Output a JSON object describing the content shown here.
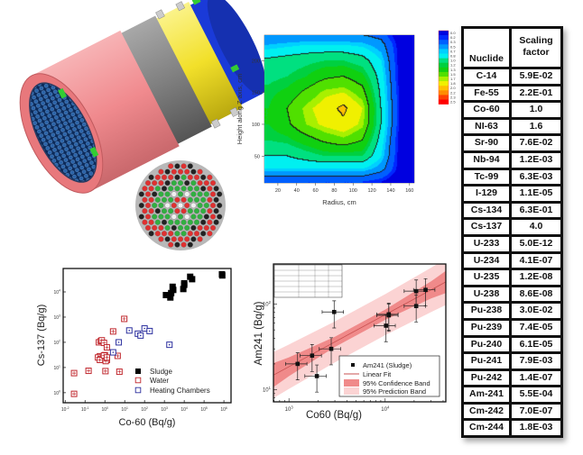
{
  "table": {
    "headers": [
      "Nuclide",
      "Scaling factor"
    ],
    "rows": [
      [
        "C-14",
        "5.9E-02"
      ],
      [
        "Fe-55",
        "2.2E-01"
      ],
      [
        "Co-60",
        "1.0"
      ],
      [
        "NI-63",
        "1.6"
      ],
      [
        "Sr-90",
        "7.6E-02"
      ],
      [
        "Nb-94",
        "1.2E-03"
      ],
      [
        "Tc-99",
        "6.3E-03"
      ],
      [
        "I-129",
        "1.1E-05"
      ],
      [
        "Cs-134",
        "6.3E-01"
      ],
      [
        "Cs-137",
        "4.0"
      ],
      [
        "U-233",
        "5.0E-12"
      ],
      [
        "U-234",
        "4.1E-07"
      ],
      [
        "U-235",
        "1.2E-08"
      ],
      [
        "U-238",
        "8.6E-08"
      ],
      [
        "Pu-238",
        "3.0E-02"
      ],
      [
        "Pu-239",
        "7.4E-05"
      ],
      [
        "Pu-240",
        "6.1E-05"
      ],
      [
        "Pu-241",
        "7.9E-03"
      ],
      [
        "Pu-242",
        "1.4E-07"
      ],
      [
        "Am-241",
        "5.5E-04"
      ],
      [
        "Cm-242",
        "7.0E-07"
      ],
      [
        "Cm-244",
        "1.8E-03"
      ]
    ]
  },
  "colors": {
    "sludge": "#000000",
    "water": "#c0272d",
    "heating": "#2b2f9e",
    "fit": "#c85050",
    "confidence": "#f08a8a",
    "prediction": "#fbd3d3",
    "cylinder_pink": "#f08a8e",
    "cylinder_gray": "#808080",
    "cylinder_yellow": "#f2e02a",
    "cylinder_blue": "#1a3ad8"
  },
  "chart_data": [
    {
      "type": "heatmap",
      "xlabel": "Radius, cm",
      "ylabel": "Height along Z axis, cm",
      "xlim": [
        5.7,
        165
      ],
      "ylim": [
        8,
        240
      ],
      "xticks": [
        20,
        40,
        60,
        80,
        100,
        120,
        140,
        160
      ],
      "yticks": [
        50,
        100,
        150,
        200
      ],
      "r": [
        5,
        10,
        30,
        50,
        70,
        90,
        110,
        130,
        150,
        165
      ],
      "z": [
        10,
        30,
        50,
        75,
        100,
        125,
        150,
        175,
        200,
        225,
        240
      ],
      "values": [
        [
          0.3,
          0.3,
          0.3,
          0.3,
          0.3,
          0.3,
          0.3,
          0.2,
          0.0,
          0.0
        ],
        [
          0.8,
          0.8,
          0.8,
          0.8,
          0.8,
          0.8,
          0.8,
          0.6,
          0.1,
          0.0
        ],
        [
          1.0,
          1.0,
          1.0,
          1.1,
          1.2,
          1.2,
          1.2,
          0.8,
          0.1,
          0.0
        ],
        [
          1.2,
          1.2,
          1.25,
          1.4,
          1.55,
          1.65,
          1.5,
          0.9,
          0.1,
          0.0
        ],
        [
          1.3,
          1.3,
          1.45,
          1.7,
          1.85,
          1.95,
          1.75,
          1.0,
          0.15,
          0.0
        ],
        [
          1.3,
          1.3,
          1.5,
          1.75,
          1.9,
          2.05,
          1.8,
          1.0,
          0.15,
          0.0
        ],
        [
          1.25,
          1.25,
          1.35,
          1.55,
          1.75,
          1.8,
          1.6,
          0.95,
          0.15,
          0.0
        ],
        [
          1.15,
          1.15,
          1.2,
          1.3,
          1.45,
          1.5,
          1.35,
          0.9,
          0.1,
          0.0
        ],
        [
          1.05,
          1.05,
          1.1,
          1.15,
          1.2,
          1.2,
          1.1,
          0.8,
          0.1,
          0.0
        ],
        [
          0.7,
          0.7,
          0.75,
          0.8,
          0.8,
          0.8,
          0.75,
          0.6,
          0.1,
          0.0
        ],
        [
          0.5,
          0.5,
          0.5,
          0.5,
          0.5,
          0.5,
          0.5,
          0.4,
          0.05,
          0.0
        ]
      ],
      "colorbar_labels": [
        "0.0",
        "0.2",
        "0.3",
        "0.5",
        "0.7",
        "0.8",
        "1.0",
        "1.2",
        "1.3",
        "1.5",
        "1.7",
        "1.8",
        "2.0",
        "2.2",
        "2.3",
        "2.5"
      ],
      "colorbar_colors": [
        "#0000e0",
        "#0028ff",
        "#0060ff",
        "#0098ff",
        "#00d0ff",
        "#00f0f0",
        "#00e080",
        "#00d040",
        "#10d010",
        "#50e000",
        "#a8f000",
        "#f0f000",
        "#ffc000",
        "#ff8c00",
        "#ff4000",
        "#ff0000"
      ],
      "contour_levels": [
        0.5,
        1.0,
        1.5,
        2.0
      ],
      "contour_labels": [
        "2.0",
        "1.0"
      ]
    },
    {
      "type": "scatter",
      "xlabel": "Co-60 (Bq/g)",
      "ylabel": "Cs-137 (Bq/g)",
      "xscale": "log",
      "yscale": "log",
      "xlim": [
        0.0079,
        2290000
      ],
      "ylim": [
        0.4,
        85000
      ],
      "xtick_exponents": [
        -2,
        -1,
        0,
        1,
        2,
        3,
        4,
        5,
        6
      ],
      "ytick_exponents": [
        0,
        1,
        2,
        3,
        4
      ],
      "legend": "bottom-right",
      "series": [
        {
          "name": "Sludge",
          "marker": "filled-square",
          "x": [
            1200,
            2000,
            2200,
            2600,
            2800,
            9000,
            10000,
            10000,
            20000,
            25000,
            800000,
            830000
          ],
          "y": [
            7500,
            6000,
            9000,
            16000,
            12000,
            13000,
            19000,
            22000,
            40000,
            32000,
            50000,
            45000
          ]
        },
        {
          "name": "Water",
          "marker": "open-square",
          "x": [
            0.028,
            0.028,
            0.15,
            1.07,
            5.4,
            9.5,
            2.6,
            4.4,
            0.5,
            0.63,
            0.7,
            0.9,
            1.26,
            1.26,
            0.56,
            0.45,
            0.63,
            1.0,
            1.1,
            0.56,
            0.9,
            1.26
          ],
          "y": [
            0.9,
            6,
            7.4,
            7.2,
            6.8,
            850,
            270,
            29,
            100,
            112,
            120,
            95,
            63,
            20,
            28,
            25,
            22,
            31,
            18,
            20,
            30,
            25
          ]
        },
        {
          "name": "Heating Chambers",
          "marker": "open-square-dot",
          "x": [
            2.6,
            5,
            17,
            46,
            63,
            100,
            180,
            1800
          ],
          "y": [
            40,
            100,
            295,
            220,
            186,
            355,
            280,
            80
          ]
        }
      ]
    },
    {
      "type": "scatter",
      "xlabel": "Co60 (Bq/g)",
      "ylabel": "Am241 (Bq/g)",
      "xscale": "log",
      "yscale": "log",
      "xlim": [
        690,
        42700
      ],
      "ylim": [
        7.2,
        295
      ],
      "xtick_exponents": [
        3,
        4
      ],
      "ytick_exponents": [
        1,
        2
      ],
      "legend": "bottom-right",
      "legend_entries": [
        "Am241 (Sludge)",
        "Linear Fit",
        "95% Confidence Band",
        "95% Prediction Band"
      ],
      "points": {
        "x": [
          1230,
          1740,
          1950,
          2750,
          2950,
          10200,
          10900,
          10900,
          21000,
          21000,
          26300
        ],
        "y": [
          20,
          25,
          14.4,
          30,
          81,
          56,
          74,
          76,
          95,
          142,
          147
        ],
        "x_rel_err": 0.25,
        "y_rel_err": 0.35
      },
      "fit_line": {
        "x": [
          690,
          42700
        ],
        "y": [
          14.8,
          182
        ]
      },
      "confidence_band": {
        "x": [
          690,
          1000,
          3000,
          10000,
          30000,
          42700
        ],
        "log_halfwidth": [
          0.14,
          0.11,
          0.06,
          0.06,
          0.1,
          0.13
        ]
      },
      "prediction_band": {
        "x": [
          690,
          1000,
          3000,
          10000,
          30000,
          42700
        ],
        "log_halfwidth": [
          0.27,
          0.26,
          0.24,
          0.24,
          0.26,
          0.27
        ]
      }
    }
  ]
}
